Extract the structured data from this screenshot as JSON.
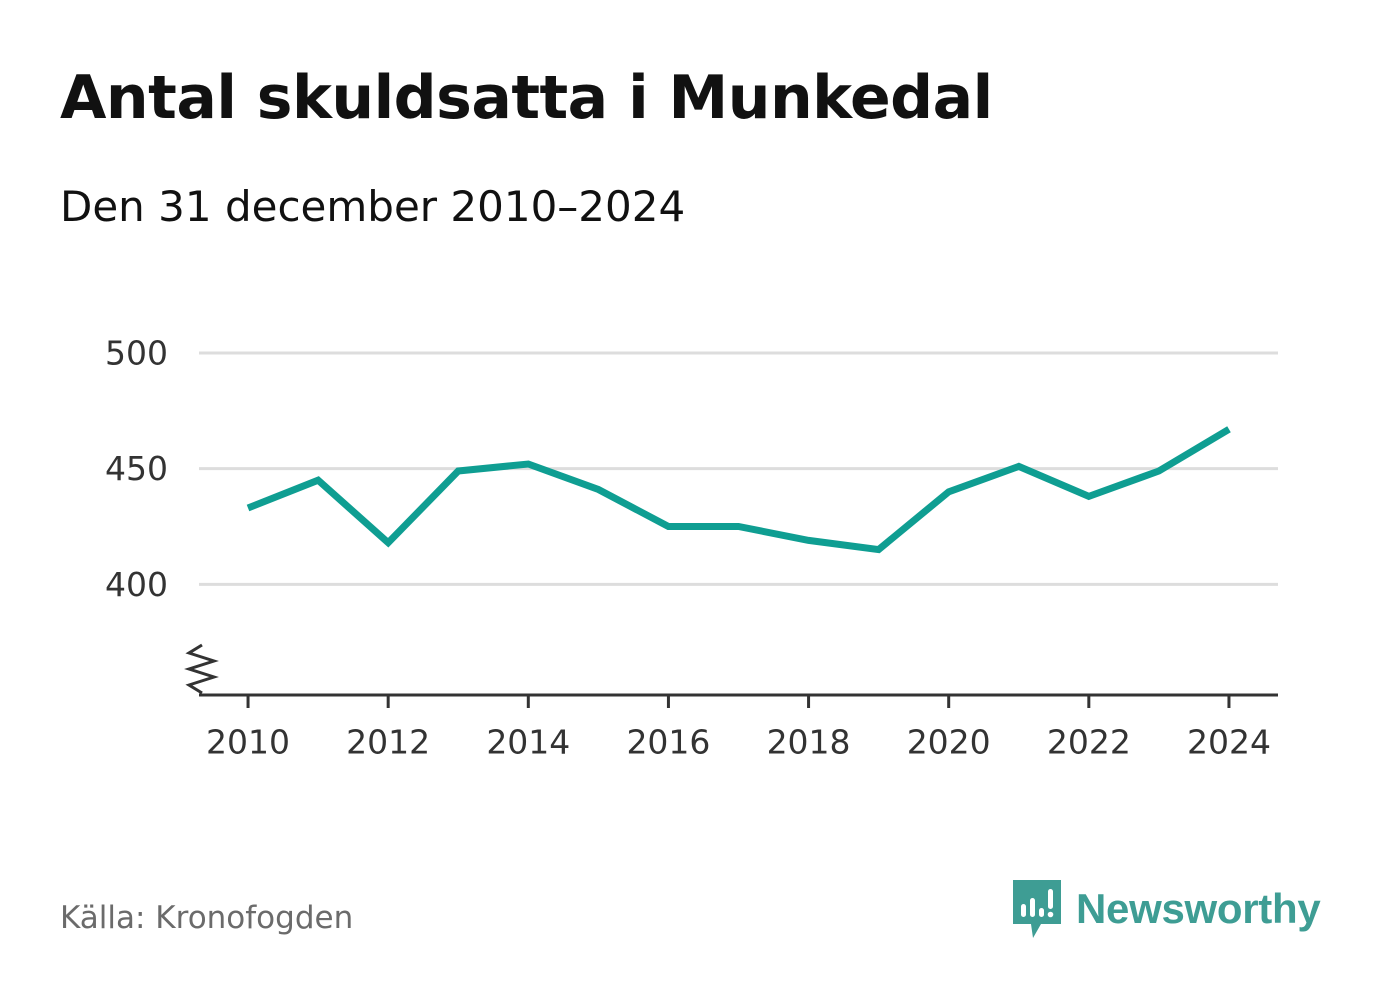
{
  "title": "Antal skuldsatta i Munkedal",
  "subtitle": "Den 31 december 2010–2024",
  "source": "Källa: Kronofogden",
  "brand": "Newsworthy",
  "colors": {
    "line": "#0f9e92",
    "grid": "#dddddd",
    "axis": "#333333",
    "brand": "#3e9d94"
  },
  "chart_data": {
    "type": "line",
    "title": "Antal skuldsatta i Munkedal",
    "subtitle": "Den 31 december 2010–2024",
    "xlabel": "",
    "ylabel": "",
    "x": [
      2010,
      2011,
      2012,
      2013,
      2014,
      2015,
      2016,
      2017,
      2018,
      2019,
      2020,
      2021,
      2022,
      2023,
      2024
    ],
    "series": [
      {
        "name": "Antal skuldsatta",
        "values": [
          433,
          445,
          418,
          449,
          452,
          441,
          425,
          425,
          419,
          415,
          440,
          451,
          438,
          449,
          467
        ]
      }
    ],
    "xticks": [
      "2010",
      "2012",
      "2014",
      "2016",
      "2018",
      "2020",
      "2022",
      "2024"
    ],
    "yticks": [
      "400",
      "450",
      "500"
    ],
    "ylim": [
      350,
      500
    ],
    "xlim": [
      2009.3,
      2024.7
    ],
    "grid": true,
    "axis_break": true,
    "legend": "none"
  }
}
